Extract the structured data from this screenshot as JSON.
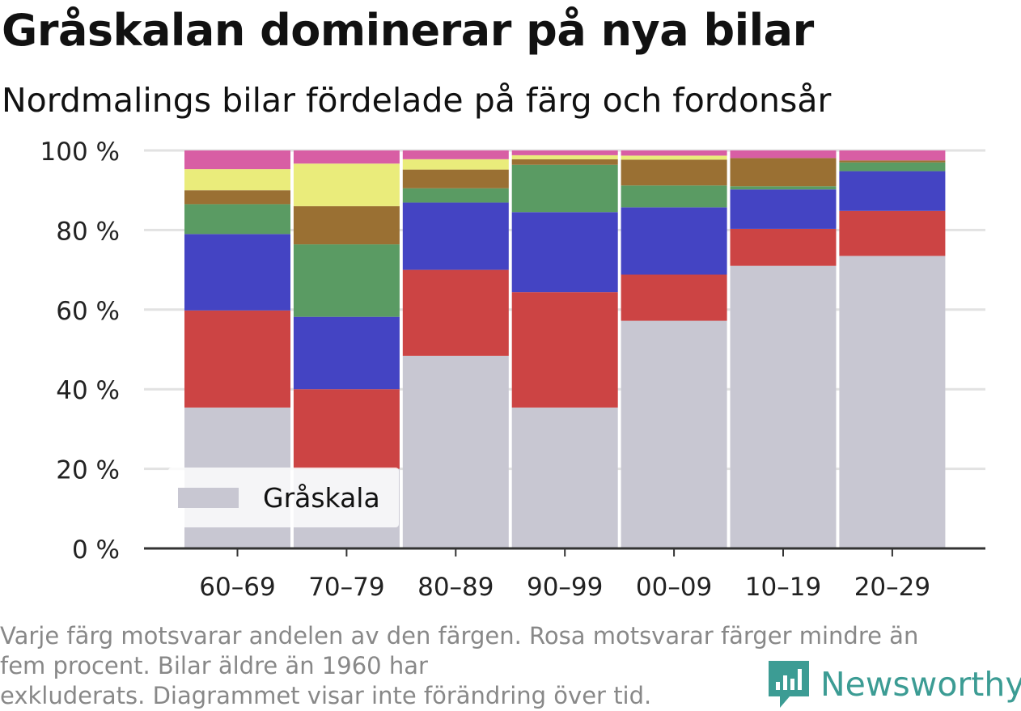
{
  "title": "Gråskalan dominerar på nya bilar",
  "subtitle": "Nordmalings bilar fördelade på färg och fordonsår",
  "footnote_line1": "Varje färg motsvarar andelen av den färgen. Rosa motsvarar färger mindre än",
  "footnote_line2": "fem procent. Bilar äldre än 1960 har",
  "footnote_line3": "exkluderats. Diagrammet visar inte förändring över tid.",
  "brand": {
    "name": "Newsworthy",
    "icon": "newsworthy-logo-icon",
    "color": "#3c9c94"
  },
  "chart_data": {
    "type": "bar",
    "stacked": true,
    "categories": [
      "60–69",
      "70–79",
      "80–89",
      "90–99",
      "00–09",
      "10–19",
      "20–29"
    ],
    "ylim": [
      0,
      100
    ],
    "yticks": [
      0,
      20,
      40,
      60,
      80,
      100
    ],
    "ytick_labels": [
      "0 %",
      "20 %",
      "40 %",
      "60 %",
      "80 %",
      "100 %"
    ],
    "grid": true,
    "legend": {
      "position": "bottom-left",
      "entries": [
        "Gråskala"
      ]
    },
    "series": [
      {
        "name": "Gråskala",
        "color": "#c8c7d2",
        "values": [
          35.4,
          20.0,
          48.4,
          35.4,
          57.2,
          71.0,
          73.5
        ]
      },
      {
        "color": "#cc4444",
        "values": [
          24.4,
          20.0,
          21.6,
          29.0,
          11.6,
          9.3,
          11.3
        ]
      },
      {
        "color": "#4444c3",
        "values": [
          19.2,
          18.2,
          16.9,
          20.1,
          16.9,
          9.9,
          10.0
        ]
      },
      {
        "color": "#5a9b63",
        "values": [
          7.5,
          18.2,
          3.6,
          11.9,
          5.5,
          0.8,
          2.2
        ]
      },
      {
        "color": "#9a7033",
        "values": [
          3.5,
          9.6,
          4.7,
          1.4,
          6.5,
          7.1,
          0.5
        ]
      },
      {
        "color": "#eaec7b",
        "values": [
          5.3,
          10.7,
          2.6,
          1.0,
          1.0,
          0.0,
          0.0
        ]
      },
      {
        "color": "#d85ea4",
        "values": [
          4.7,
          3.3,
          2.2,
          1.2,
          1.3,
          1.9,
          2.5
        ]
      }
    ]
  }
}
